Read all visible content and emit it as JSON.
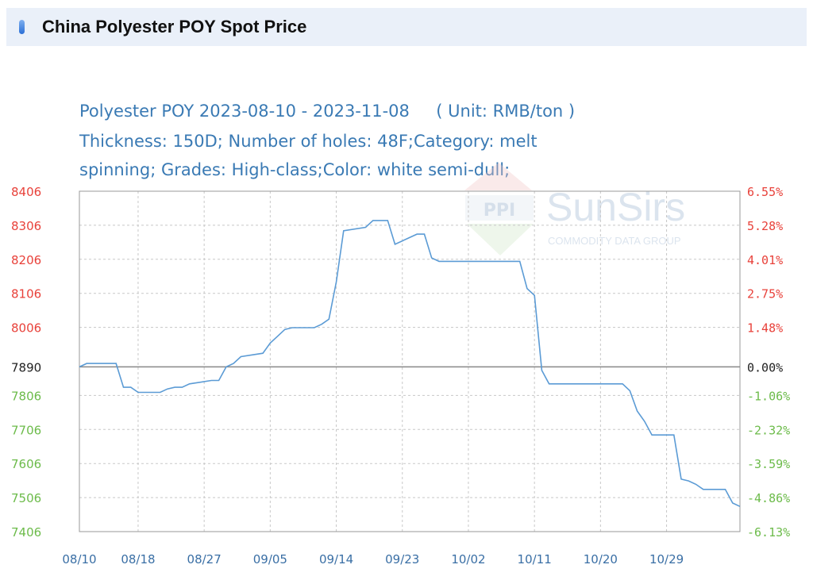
{
  "header": {
    "title": "China Polyester POY Spot Price"
  },
  "watermark": {
    "logo_text": "PPI",
    "brand": "SunSirs",
    "tagline": "COMMODITY DATA GROUP"
  },
  "colors": {
    "line": "#5b9bd5",
    "up": "#e8413a",
    "down": "#6cbb4a",
    "base": "#222222",
    "title": "#3a7ab4",
    "axis_x": "#3a6fa5"
  },
  "chart_data": {
    "type": "line",
    "title_lines": [
      "Polyester POY 2023-08-10 - 2023-11-08     ( Unit: RMB/ton )",
      "Thickness: 150D; Number of holes: 48F;Category: melt",
      "spinning; Grades: High-class;Color: white semi-dull;"
    ],
    "xlabel": "",
    "ylabel": "",
    "x_start": "2023-08-10",
    "x_end": "2023-11-08",
    "x_ticks": [
      "08/10",
      "08/18",
      "08/27",
      "09/05",
      "09/14",
      "09/23",
      "10/02",
      "10/11",
      "10/20",
      "10/29"
    ],
    "y_ticks_left": [
      "8406",
      "8306",
      "8206",
      "8106",
      "8006",
      "7890",
      "7806",
      "7706",
      "7606",
      "7506",
      "7406"
    ],
    "y_ticks_right": [
      "6.55%",
      "5.28%",
      "4.01%",
      "2.75%",
      "1.48%",
      "0.00%",
      "-1.06%",
      "-2.32%",
      "-3.59%",
      "-4.86%",
      "-6.13%"
    ],
    "ylim": [
      7406,
      8406
    ],
    "baseline": 7890,
    "grid": true,
    "series": [
      {
        "points": [
          [
            "2023-08-10",
            7890
          ],
          [
            "2023-08-11",
            7900
          ],
          [
            "2023-08-14",
            7900
          ],
          [
            "2023-08-15",
            7900
          ],
          [
            "2023-08-16",
            7830
          ],
          [
            "2023-08-17",
            7830
          ],
          [
            "2023-08-18",
            7815
          ],
          [
            "2023-08-21",
            7815
          ],
          [
            "2023-08-22",
            7825
          ],
          [
            "2023-08-23",
            7830
          ],
          [
            "2023-08-24",
            7830
          ],
          [
            "2023-08-25",
            7840
          ],
          [
            "2023-08-28",
            7850
          ],
          [
            "2023-08-29",
            7850
          ],
          [
            "2023-08-30",
            7890
          ],
          [
            "2023-08-31",
            7900
          ],
          [
            "2023-09-01",
            7920
          ],
          [
            "2023-09-04",
            7930
          ],
          [
            "2023-09-05",
            7960
          ],
          [
            "2023-09-06",
            7980
          ],
          [
            "2023-09-07",
            8000
          ],
          [
            "2023-09-08",
            8005
          ],
          [
            "2023-09-11",
            8005
          ],
          [
            "2023-09-12",
            8015
          ],
          [
            "2023-09-13",
            8030
          ],
          [
            "2023-09-14",
            8140
          ],
          [
            "2023-09-15",
            8290
          ],
          [
            "2023-09-18",
            8300
          ],
          [
            "2023-09-19",
            8320
          ],
          [
            "2023-09-20",
            8320
          ],
          [
            "2023-09-21",
            8320
          ],
          [
            "2023-09-22",
            8250
          ],
          [
            "2023-09-25",
            8280
          ],
          [
            "2023-09-26",
            8280
          ],
          [
            "2023-09-27",
            8210
          ],
          [
            "2023-09-28",
            8200
          ],
          [
            "2023-10-09",
            8200
          ],
          [
            "2023-10-10",
            8120
          ],
          [
            "2023-10-11",
            8100
          ],
          [
            "2023-10-12",
            7880
          ],
          [
            "2023-10-13",
            7840
          ],
          [
            "2023-10-16",
            7840
          ],
          [
            "2023-10-17",
            7840
          ],
          [
            "2023-10-18",
            7840
          ],
          [
            "2023-10-19",
            7840
          ],
          [
            "2023-10-20",
            7840
          ],
          [
            "2023-10-23",
            7840
          ],
          [
            "2023-10-24",
            7820
          ],
          [
            "2023-10-25",
            7760
          ],
          [
            "2023-10-26",
            7730
          ],
          [
            "2023-10-27",
            7690
          ],
          [
            "2023-10-30",
            7690
          ],
          [
            "2023-10-31",
            7560
          ],
          [
            "2023-11-01",
            7555
          ],
          [
            "2023-11-02",
            7545
          ],
          [
            "2023-11-03",
            7530
          ],
          [
            "2023-11-06",
            7530
          ],
          [
            "2023-11-07",
            7490
          ],
          [
            "2023-11-08",
            7480
          ]
        ]
      }
    ]
  }
}
